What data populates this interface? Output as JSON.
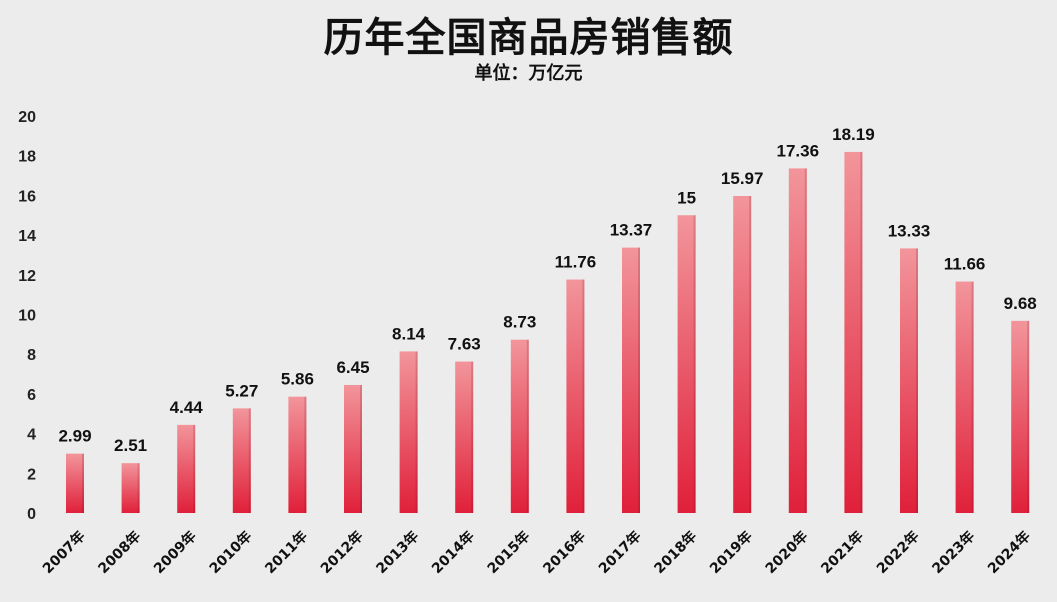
{
  "chart_data": {
    "type": "bar",
    "title": "历年全国商品房销售额",
    "subtitle": "单位：万亿元",
    "categories": [
      "2007年",
      "2008年",
      "2009年",
      "2010年",
      "2011年",
      "2012年",
      "2013年",
      "2014年",
      "2015年",
      "2016年",
      "2017年",
      "2018年",
      "2019年",
      "2020年",
      "2021年",
      "2022年",
      "2023年",
      "2024年"
    ],
    "values": [
      2.99,
      2.51,
      4.44,
      5.27,
      5.86,
      6.45,
      8.14,
      7.63,
      8.73,
      11.76,
      13.37,
      15,
      15.97,
      17.36,
      18.19,
      13.33,
      11.66,
      9.68
    ],
    "value_labels": [
      "2.99",
      "2.51",
      "4.44",
      "5.27",
      "5.86",
      "6.45",
      "8.14",
      "7.63",
      "8.73",
      "11.76",
      "13.37",
      "15",
      "15.97",
      "17.36",
      "18.19",
      "13.33",
      "11.66",
      "9.68"
    ],
    "ylim": [
      0,
      20
    ],
    "yticks": [
      "0",
      "2",
      "4",
      "6",
      "8",
      "10",
      "12",
      "14",
      "16",
      "18",
      "20"
    ],
    "grid": false,
    "legend": "none",
    "bar_color_top": "#f2959b",
    "bar_color_bottom": "#e0203a",
    "background": "#ececec"
  }
}
